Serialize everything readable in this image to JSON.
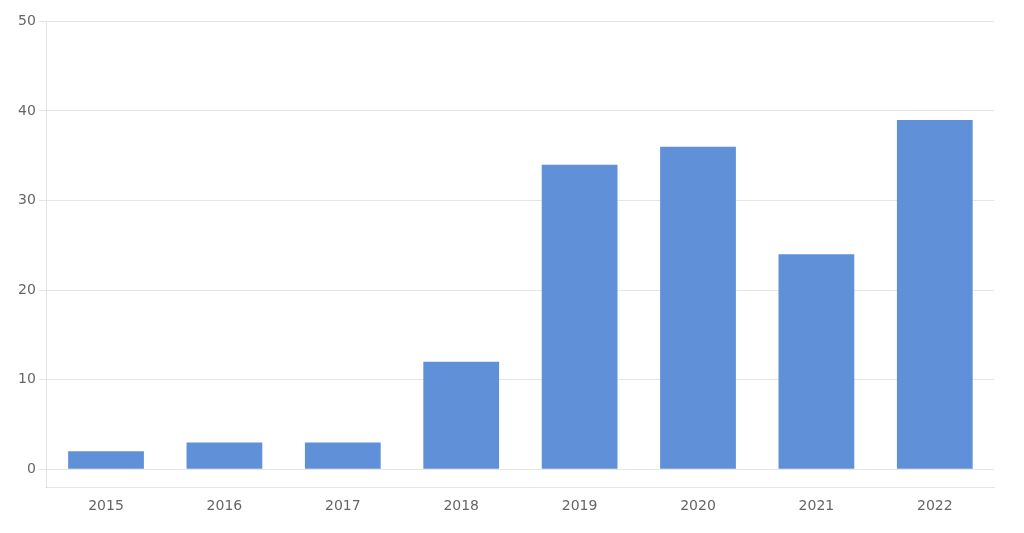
{
  "chart_data": {
    "type": "bar",
    "categories": [
      "2015",
      "2016",
      "2017",
      "2018",
      "2019",
      "2020",
      "2021",
      "2022"
    ],
    "values": [
      2,
      3,
      3,
      12,
      34,
      36,
      24,
      39
    ],
    "color": "#6090D8",
    "ylim": [
      -2,
      50
    ],
    "yticks": [
      0,
      10,
      20,
      30,
      40,
      50
    ],
    "grid": true
  }
}
